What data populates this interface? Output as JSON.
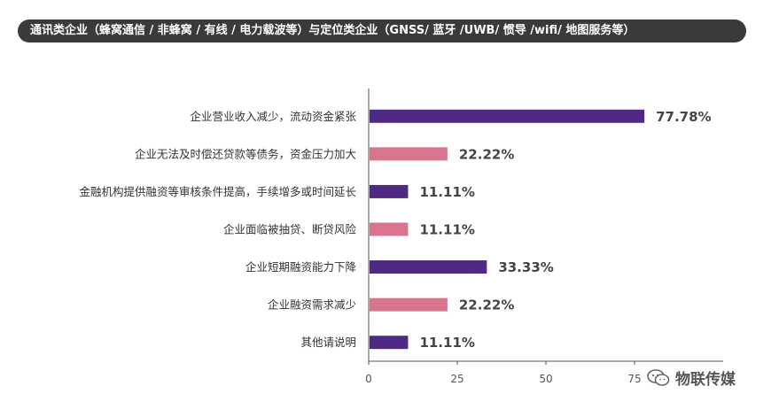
{
  "title": "通讯类企业（蜂窝通信 / 非蜂窝 / 有线 / 电力载波等）与定位类企业（GNSS/ 蓝牙 /UWB/ 惯导 /wifi/ 地图服务等）",
  "watermark": "物联传媒",
  "colors": {
    "title_bg": "#3a3a3a",
    "purple": "#4e2a84",
    "pink": "#d9748f",
    "axis": "#555555"
  },
  "chart_data": {
    "type": "bar",
    "orientation": "horizontal",
    "categories": [
      "企业营业收入减少，流动资金紧张",
      "企业无法及时偿还贷款等债务，资金压力加大",
      "金融机构提供融资等审核条件提高，手续增多或时间延长",
      "企业面临被抽贷、断贷风险",
      "企业短期融资能力下降",
      "企业融资需求减少",
      "其他请说明"
    ],
    "values": [
      77.78,
      22.22,
      11.11,
      11.11,
      33.33,
      22.22,
      11.11
    ],
    "value_labels": [
      "77.78%",
      "22.22%",
      "11.11%",
      "11.11%",
      "33.33%",
      "22.22%",
      "11.11%"
    ],
    "bar_colors": [
      "#4e2a84",
      "#d9748f",
      "#4e2a84",
      "#d9748f",
      "#4e2a84",
      "#d9748f",
      "#4e2a84"
    ],
    "xticks": [
      0,
      25,
      50,
      75
    ],
    "xlim": [
      0,
      100
    ],
    "grid": false
  }
}
